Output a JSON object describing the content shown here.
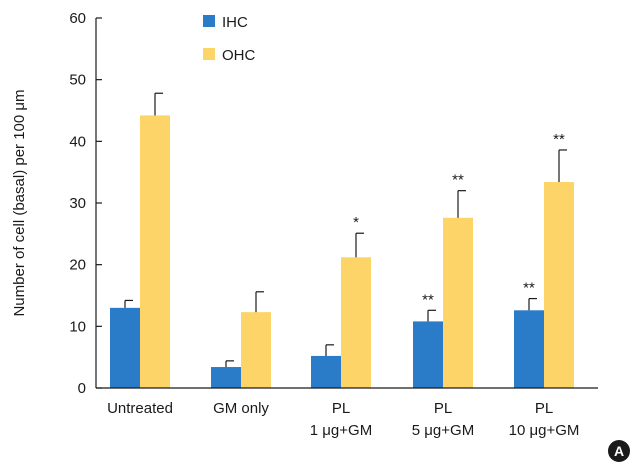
{
  "chart_data": {
    "type": "bar",
    "ylabel": "Number of cell (basal) per 100 μm",
    "ylim": [
      0,
      60
    ],
    "yticks": [
      0,
      10,
      20,
      30,
      40,
      50,
      60
    ],
    "grid": false,
    "legend_position": "top-left",
    "categories": [
      [
        "Untreated"
      ],
      [
        "GM only"
      ],
      [
        "PL",
        "1 μg+GM"
      ],
      [
        "PL",
        "5 μg+GM"
      ],
      [
        "PL",
        "10 μg+GM"
      ]
    ],
    "series": [
      {
        "name": "IHC",
        "color": "#2a7bc8",
        "values": [
          13.0,
          3.4,
          5.2,
          10.8,
          12.6
        ],
        "errors": [
          1.2,
          1.0,
          1.8,
          1.8,
          1.9
        ],
        "significance": [
          "",
          "",
          "",
          "**",
          "**"
        ]
      },
      {
        "name": "OHC",
        "color": "#fdd468",
        "values": [
          44.2,
          12.3,
          21.2,
          27.6,
          33.4
        ],
        "errors": [
          3.6,
          3.3,
          3.9,
          4.4,
          5.2
        ],
        "significance": [
          "",
          "",
          "*",
          "**",
          "**"
        ]
      }
    ]
  },
  "panel_label": "A"
}
